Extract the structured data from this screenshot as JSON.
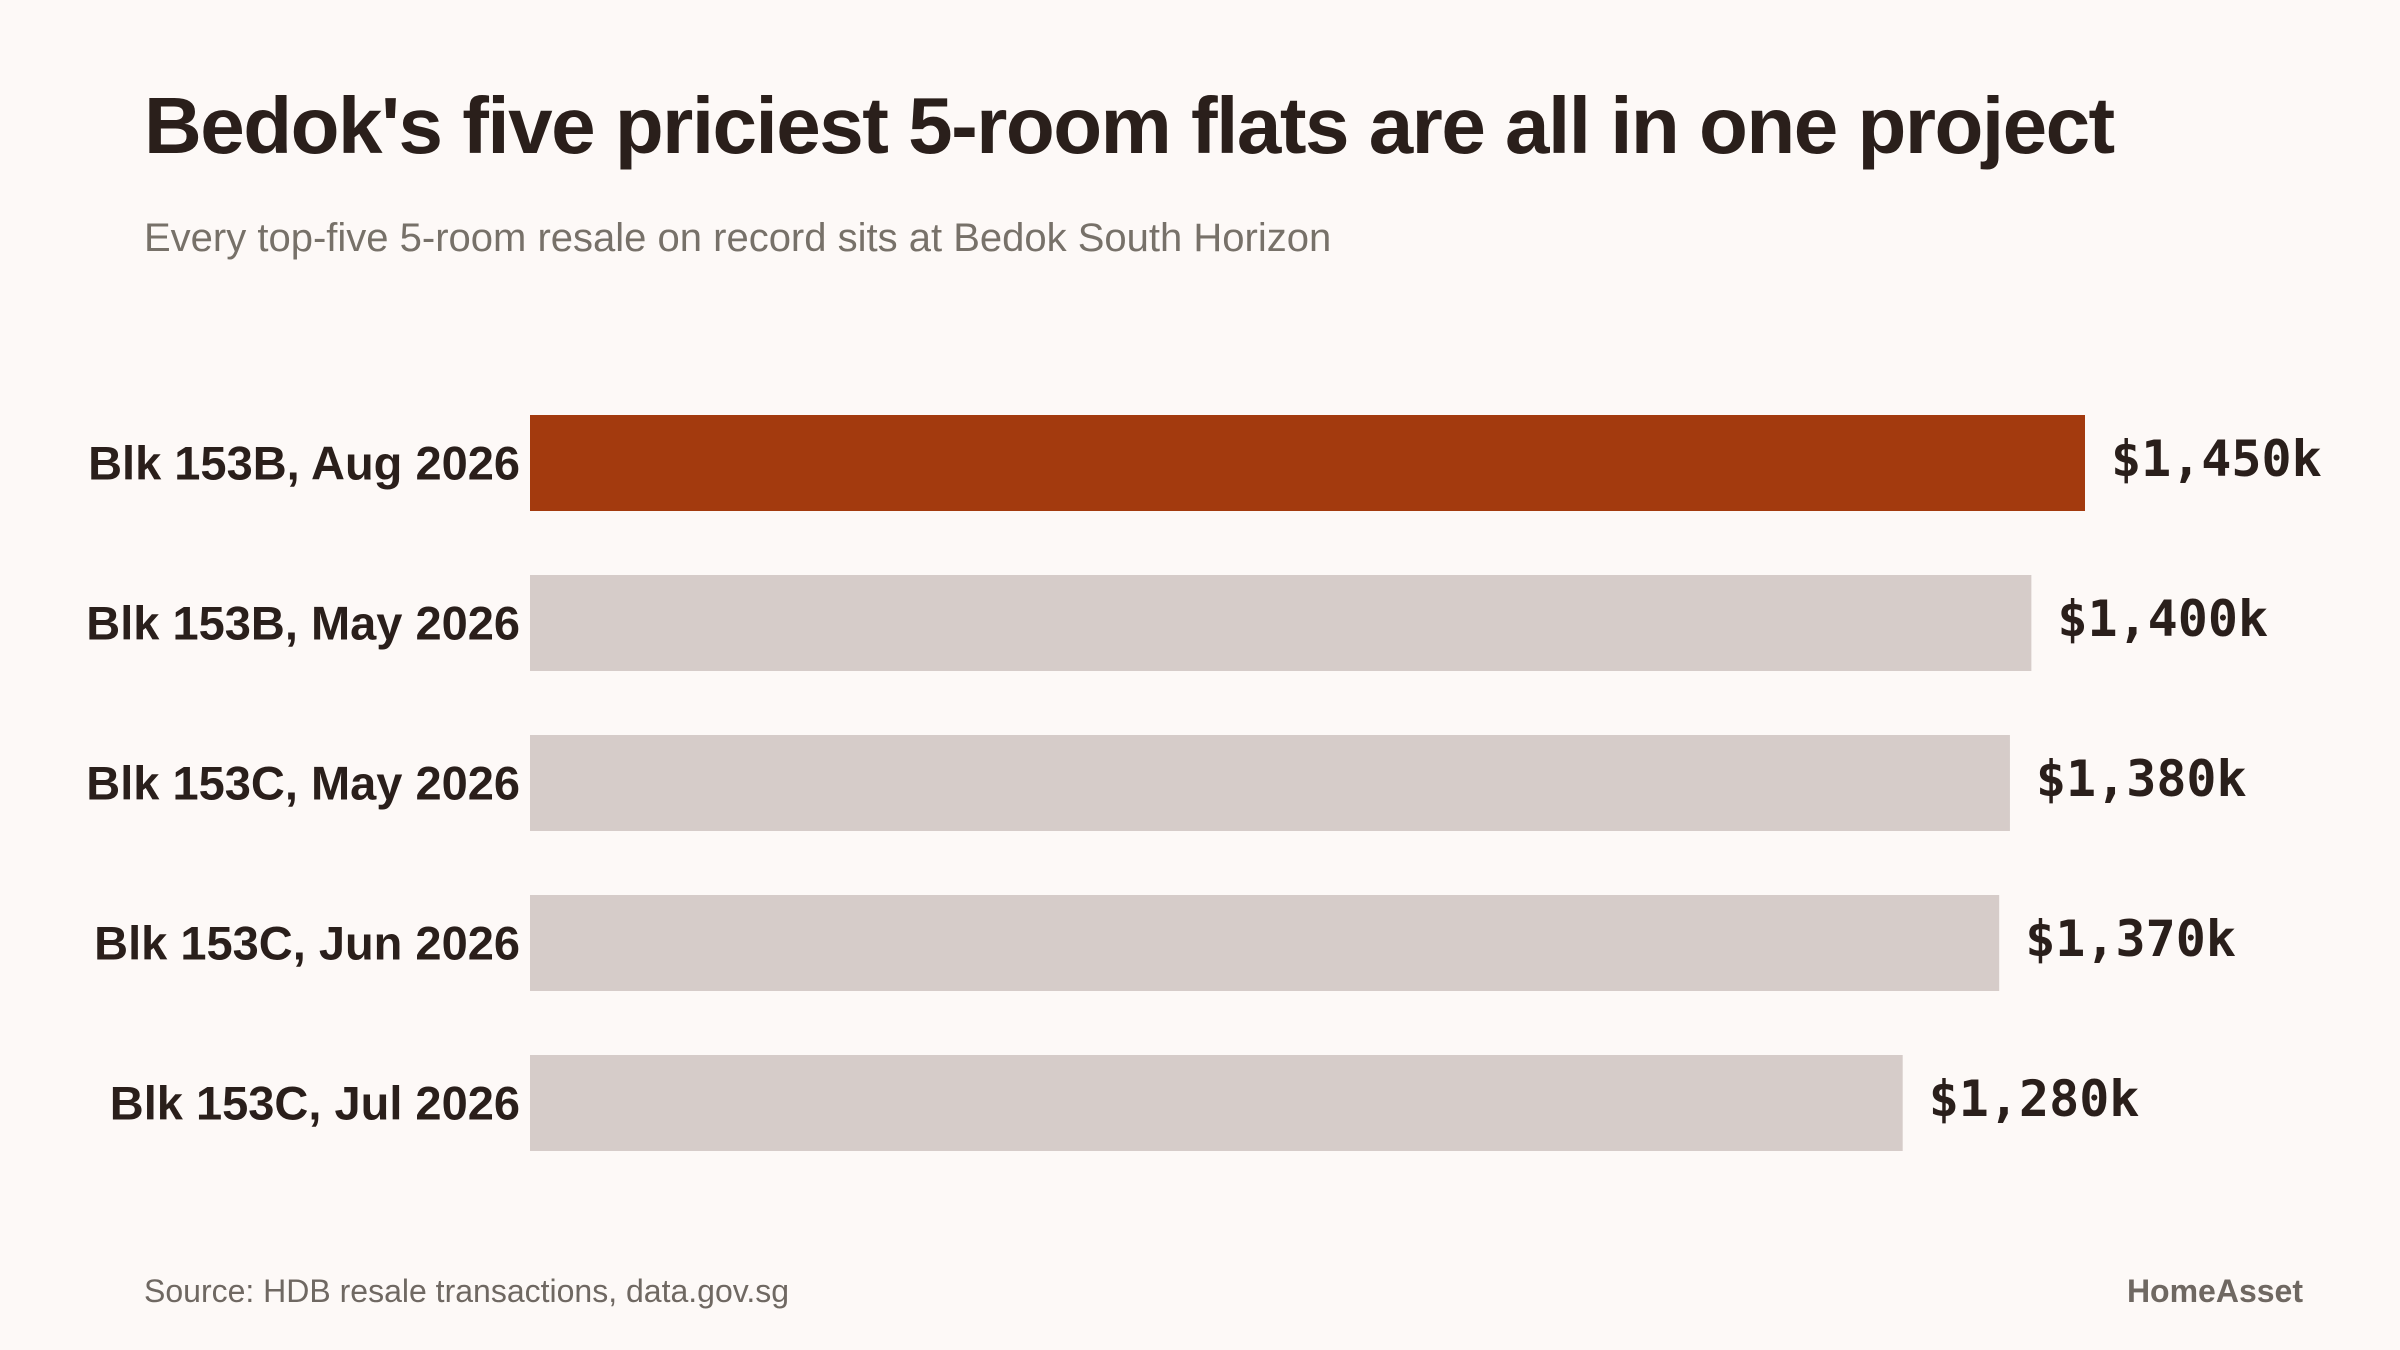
{
  "header": {
    "title": "Bedok's five priciest 5-room flats are all in one project",
    "subtitle": "Every top-five 5-room resale on record sits at Bedok South Horizon"
  },
  "footer": {
    "source": "Source: HDB resale transactions, data.gov.sg",
    "brand": "HomeAsset"
  },
  "colors": {
    "highlight": "#a33a0e",
    "bar": "#d6ccc9",
    "background": "#fdf9f7",
    "text": "#2a1f1b",
    "muted": "#6f6862"
  },
  "chart_data": {
    "type": "bar",
    "orientation": "horizontal",
    "title": "Bedok's five priciest 5-room flats are all in one project",
    "subtitle": "Every top-five 5-room resale on record sits at Bedok South Horizon",
    "categories": [
      "Blk 153B, Aug 2026",
      "Blk 153B, May 2026",
      "Blk 153C, May 2026",
      "Blk 153C, Jun 2026",
      "Blk 153C, Jul 2026"
    ],
    "values": [
      1450,
      1400,
      1380,
      1370,
      1280
    ],
    "value_labels": [
      "$1,450k",
      "$1,400k",
      "$1,380k",
      "$1,370k",
      "$1,280k"
    ],
    "unit": "$k",
    "highlight_index": 0,
    "xlim": [
      0,
      1450
    ],
    "grid": false,
    "legend": "none",
    "xlabel": "",
    "ylabel": ""
  }
}
